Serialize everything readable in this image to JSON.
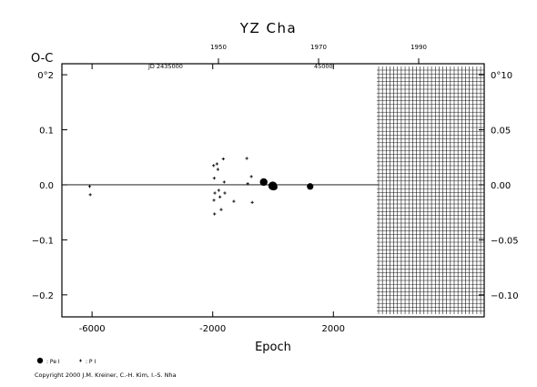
{
  "chart_data": {
    "type": "scatter",
    "title": "YZ Cha",
    "xlabel": "Epoch",
    "ylabel": "O-C",
    "xlim": [
      -7000,
      7000
    ],
    "ylim": [
      -0.24,
      0.22
    ],
    "x_ticks": [
      -6000,
      -2000,
      2000
    ],
    "y_ticks": [
      -0.2,
      -0.1,
      0.0,
      0.1,
      0.2
    ],
    "y_tick_labels": [
      "−0.2",
      "−0.1",
      "0.0",
      "0.1",
      "0°2"
    ],
    "right_ticks": [
      -0.1,
      -0.05,
      0.0,
      0.05,
      0.1
    ],
    "right_tick_labels": [
      "−0.10",
      "−0.05",
      "0.00",
      "0.05",
      "0°10"
    ],
    "top_year_ticks": [
      1950,
      1970,
      1990
    ],
    "jd_label": "JD 2435000",
    "jd_label2": "45000",
    "hatched_region_x": [
      3500,
      7000
    ],
    "grid": false,
    "series": [
      {
        "name": "Pe I",
        "marker": "dot",
        "points": [
          {
            "x": -310,
            "y": 0.005,
            "s": 4.2
          },
          {
            "x": -10,
            "y": -0.002,
            "s": 4.8
          },
          {
            "x": 40,
            "y": -0.004,
            "s": 3.6
          },
          {
            "x": 1230,
            "y": -0.003,
            "s": 3.6
          }
        ]
      },
      {
        "name": "P I",
        "marker": "plus",
        "points": [
          {
            "x": -6080,
            "y": -0.003
          },
          {
            "x": -6060,
            "y": -0.018
          },
          {
            "x": -1970,
            "y": 0.035
          },
          {
            "x": -1950,
            "y": 0.012
          },
          {
            "x": -1930,
            "y": -0.015
          },
          {
            "x": -1960,
            "y": -0.028
          },
          {
            "x": -1940,
            "y": -0.053
          },
          {
            "x": -1860,
            "y": 0.038
          },
          {
            "x": -1830,
            "y": 0.028
          },
          {
            "x": -1800,
            "y": -0.01
          },
          {
            "x": -1760,
            "y": -0.022
          },
          {
            "x": -1720,
            "y": -0.045
          },
          {
            "x": -1650,
            "y": 0.047
          },
          {
            "x": -1620,
            "y": 0.005
          },
          {
            "x": -1600,
            "y": -0.015
          },
          {
            "x": -1300,
            "y": -0.03
          },
          {
            "x": -870,
            "y": 0.048
          },
          {
            "x": -720,
            "y": 0.015
          },
          {
            "x": -690,
            "y": -0.032
          },
          {
            "x": -840,
            "y": 0.002
          }
        ]
      }
    ],
    "legend": [
      {
        "marker": "dot",
        "label": ": Pe I"
      },
      {
        "marker": "plus",
        "label": ": P I"
      }
    ]
  },
  "copyright": "Copyright 2000 J.M. Kreiner, C.-H. Kim, I.-S. Nha"
}
